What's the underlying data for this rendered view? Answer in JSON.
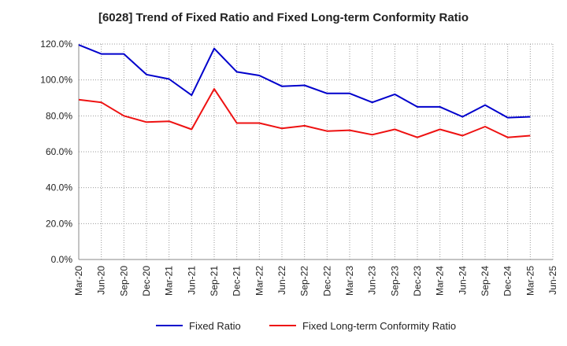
{
  "chart_data": {
    "type": "line",
    "title": "[6028]  Trend of Fixed Ratio and Fixed Long-term Conformity Ratio",
    "xlabel": "",
    "ylabel": "",
    "categories": [
      "Mar-20",
      "Jun-20",
      "Sep-20",
      "Dec-20",
      "Mar-21",
      "Jun-21",
      "Sep-21",
      "Dec-21",
      "Mar-22",
      "Jun-22",
      "Sep-22",
      "Dec-22",
      "Mar-23",
      "Jun-23",
      "Sep-23",
      "Dec-23",
      "Mar-24",
      "Jun-24",
      "Sep-24",
      "Dec-24",
      "Mar-25",
      "Jun-25"
    ],
    "ylim": [
      0,
      120
    ],
    "yticks": [
      "0.0%",
      "20.0%",
      "40.0%",
      "60.0%",
      "80.0%",
      "100.0%",
      "120.0%"
    ],
    "ytick_values": [
      0,
      20,
      40,
      60,
      80,
      100,
      120
    ],
    "grid": true,
    "legend_position": "bottom",
    "series": [
      {
        "name": "Fixed Ratio",
        "color": "#0000cc",
        "values": [
          119.5,
          114.5,
          114.5,
          103.0,
          100.5,
          91.5,
          117.5,
          104.5,
          102.5,
          96.5,
          97.0,
          92.5,
          92.5,
          87.5,
          92.0,
          85.0,
          85.0,
          79.5,
          86.0,
          79.0,
          79.5,
          null
        ]
      },
      {
        "name": "Fixed Long-term Conformity Ratio",
        "color": "#ee1111",
        "values": [
          89.0,
          87.5,
          80.0,
          76.5,
          77.0,
          72.5,
          95.0,
          76.0,
          76.0,
          73.0,
          74.5,
          71.5,
          72.0,
          69.5,
          72.5,
          68.0,
          72.5,
          69.0,
          74.0,
          68.0,
          69.0,
          null
        ]
      }
    ]
  }
}
